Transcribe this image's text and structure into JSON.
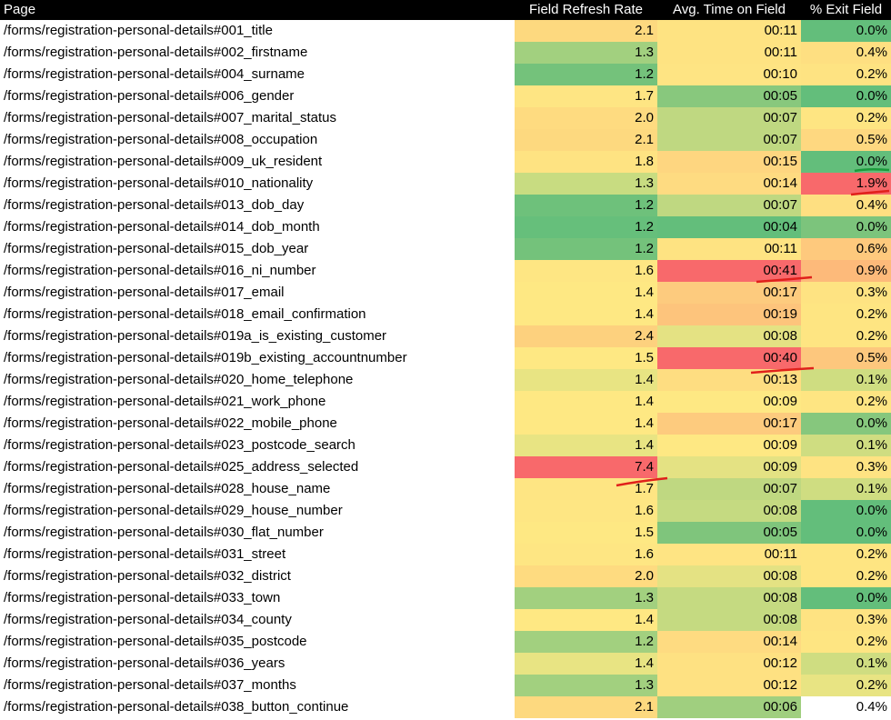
{
  "table": {
    "headers": [
      "Page",
      "Field Refresh Rate",
      "Avg. Time on Field",
      "% Exit Field"
    ],
    "rows": [
      {
        "page": "/forms/registration-personal-details#001_title",
        "refresh": "2.1",
        "time": "00:11",
        "exit": "0.0%",
        "refresh_bg": "#fdd97f",
        "time_bg": "#fee382",
        "exit_bg": "#63be7b"
      },
      {
        "page": "/forms/registration-personal-details#002_firstname",
        "refresh": "1.3",
        "time": "00:11",
        "exit": "0.4%",
        "refresh_bg": "#a2d07f",
        "time_bg": "#fee382",
        "exit_bg": "#fedf81"
      },
      {
        "page": "/forms/registration-personal-details#004_surname",
        "refresh": "1.2",
        "time": "00:10",
        "exit": "0.2%",
        "refresh_bg": "#74c27b",
        "time_bg": "#fee483",
        "exit_bg": "#fee382"
      },
      {
        "page": "/forms/registration-personal-details#006_gender",
        "refresh": "1.7",
        "time": "00:05",
        "exit": "0.0%",
        "refresh_bg": "#fee583",
        "time_bg": "#88c87d",
        "exit_bg": "#63be7b"
      },
      {
        "page": "/forms/registration-personal-details#007_marital_status",
        "refresh": "2.0",
        "time": "00:07",
        "exit": "0.2%",
        "refresh_bg": "#fedb80",
        "time_bg": "#bfd881",
        "exit_bg": "#fee582"
      },
      {
        "page": "/forms/registration-personal-details#008_occupation",
        "refresh": "2.1",
        "time": "00:07",
        "exit": "0.5%",
        "refresh_bg": "#fdd97f",
        "time_bg": "#bfd881",
        "exit_bg": "#fed880"
      },
      {
        "page": "/forms/registration-personal-details#009_uk_resident",
        "refresh": "1.8",
        "time": "00:15",
        "exit": "0.0%",
        "refresh_bg": "#fee382",
        "time_bg": "#fed680",
        "exit_bg": "#63be7b"
      },
      {
        "page": "/forms/registration-personal-details#010_nationality",
        "refresh": "1.3",
        "time": "00:14",
        "exit": "1.9%",
        "refresh_bg": "#c8dc81",
        "time_bg": "#fedb81",
        "exit_bg": "#f8696b"
      },
      {
        "page": "/forms/registration-personal-details#013_dob_day",
        "refresh": "1.2",
        "time": "00:07",
        "exit": "0.4%",
        "refresh_bg": "#6ec17b",
        "time_bg": "#bfd881",
        "exit_bg": "#fedf81"
      },
      {
        "page": "/forms/registration-personal-details#014_dob_month",
        "refresh": "1.2",
        "time": "00:04",
        "exit": "0.0%",
        "refresh_bg": "#66bf7b",
        "time_bg": "#63be7b",
        "exit_bg": "#7cc47c"
      },
      {
        "page": "/forms/registration-personal-details#015_dob_year",
        "refresh": "1.2",
        "time": "00:11",
        "exit": "0.6%",
        "refresh_bg": "#74c27b",
        "time_bg": "#fee382",
        "exit_bg": "#fec97d"
      },
      {
        "page": "/forms/registration-personal-details#016_ni_number",
        "refresh": "1.6",
        "time": "00:41",
        "exit": "0.9%",
        "refresh_bg": "#fee683",
        "time_bg": "#f8696b",
        "exit_bg": "#fdba7a"
      },
      {
        "page": "/forms/registration-personal-details#017_email",
        "refresh": "1.4",
        "time": "00:17",
        "exit": "0.3%",
        "refresh_bg": "#fee883",
        "time_bg": "#fdcb7e",
        "exit_bg": "#fee382"
      },
      {
        "page": "/forms/registration-personal-details#018_email_confirmation",
        "refresh": "1.4",
        "time": "00:19",
        "exit": "0.2%",
        "refresh_bg": "#fee883",
        "time_bg": "#fdc47c",
        "exit_bg": "#fee582"
      },
      {
        "page": "/forms/registration-personal-details#019a_is_existing_customer",
        "refresh": "2.4",
        "time": "00:08",
        "exit": "0.2%",
        "refresh_bg": "#fdd17e",
        "time_bg": "#e4e283",
        "exit_bg": "#fee582"
      },
      {
        "page": "/forms/registration-personal-details#019b_existing_accountnumber",
        "refresh": "1.5",
        "time": "00:40",
        "exit": "0.5%",
        "refresh_bg": "#fee883",
        "time_bg": "#f8696b",
        "exit_bg": "#fdc77d"
      },
      {
        "page": "/forms/registration-personal-details#020_home_telephone",
        "refresh": "1.4",
        "time": "00:13",
        "exit": "0.1%",
        "refresh_bg": "#e8e483",
        "time_bg": "#fedd81",
        "exit_bg": "#cfdd81"
      },
      {
        "page": "/forms/registration-personal-details#021_work_phone",
        "refresh": "1.4",
        "time": "00:09",
        "exit": "0.2%",
        "refresh_bg": "#fee883",
        "time_bg": "#fee883",
        "exit_bg": "#fee582"
      },
      {
        "page": "/forms/registration-personal-details#022_mobile_phone",
        "refresh": "1.4",
        "time": "00:17",
        "exit": "0.0%",
        "refresh_bg": "#fee883",
        "time_bg": "#fdcb7e",
        "exit_bg": "#86c77d"
      },
      {
        "page": "/forms/registration-personal-details#023_postcode_search",
        "refresh": "1.4",
        "time": "00:09",
        "exit": "0.1%",
        "refresh_bg": "#e8e483",
        "time_bg": "#fee883",
        "exit_bg": "#cfdd81"
      },
      {
        "page": "/forms/registration-personal-details#025_address_selected",
        "refresh": "7.4",
        "time": "00:09",
        "exit": "0.3%",
        "refresh_bg": "#f8696b",
        "time_bg": "#e4e283",
        "exit_bg": "#fee382"
      },
      {
        "page": "/forms/registration-personal-details#028_house_name",
        "refresh": "1.7",
        "time": "00:07",
        "exit": "0.1%",
        "refresh_bg": "#fee583",
        "time_bg": "#bfd881",
        "exit_bg": "#cfdd81"
      },
      {
        "page": "/forms/registration-personal-details#029_house_number",
        "refresh": "1.6",
        "time": "00:08",
        "exit": "0.0%",
        "refresh_bg": "#fee683",
        "time_bg": "#c5da81",
        "exit_bg": "#63be7b"
      },
      {
        "page": "/forms/registration-personal-details#030_flat_number",
        "refresh": "1.5",
        "time": "00:05",
        "exit": "0.0%",
        "refresh_bg": "#fee883",
        "time_bg": "#7fc57c",
        "exit_bg": "#63be7b"
      },
      {
        "page": "/forms/registration-personal-details#031_street",
        "refresh": "1.6",
        "time": "00:11",
        "exit": "0.2%",
        "refresh_bg": "#fee683",
        "time_bg": "#fee483",
        "exit_bg": "#fee582"
      },
      {
        "page": "/forms/registration-personal-details#032_district",
        "refresh": "2.0",
        "time": "00:08",
        "exit": "0.2%",
        "refresh_bg": "#fedb80",
        "time_bg": "#e4e283",
        "exit_bg": "#fee582"
      },
      {
        "page": "/forms/registration-personal-details#033_town",
        "refresh": "1.3",
        "time": "00:08",
        "exit": "0.0%",
        "refresh_bg": "#a2d07f",
        "time_bg": "#c5da81",
        "exit_bg": "#63be7b"
      },
      {
        "page": "/forms/registration-personal-details#034_county",
        "refresh": "1.4",
        "time": "00:08",
        "exit": "0.3%",
        "refresh_bg": "#fee883",
        "time_bg": "#c5da81",
        "exit_bg": "#fee382"
      },
      {
        "page": "/forms/registration-personal-details#035_postcode",
        "refresh": "1.2",
        "time": "00:14",
        "exit": "0.2%",
        "refresh_bg": "#a2d07f",
        "time_bg": "#fedb81",
        "exit_bg": "#fee582"
      },
      {
        "page": "/forms/registration-personal-details#036_years",
        "refresh": "1.4",
        "time": "00:12",
        "exit": "0.1%",
        "refresh_bg": "#e8e483",
        "time_bg": "#fee182",
        "exit_bg": "#cfdd81"
      },
      {
        "page": "/forms/registration-personal-details#037_months",
        "refresh": "1.3",
        "time": "00:12",
        "exit": "0.2%",
        "refresh_bg": "#a2d07f",
        "time_bg": "#fee182",
        "exit_bg": "#e8e483"
      },
      {
        "page": "/forms/registration-personal-details#038_button_continue",
        "refresh": "2.1",
        "time": "00:06",
        "exit": "0.4%",
        "refresh_bg": "#fdd97f",
        "time_bg": "#a0cf7f",
        "exit_bg": "#ffffff"
      }
    ]
  },
  "annotations": {
    "red_color": "#e0201b",
    "green_color": "#1a9a3a"
  }
}
